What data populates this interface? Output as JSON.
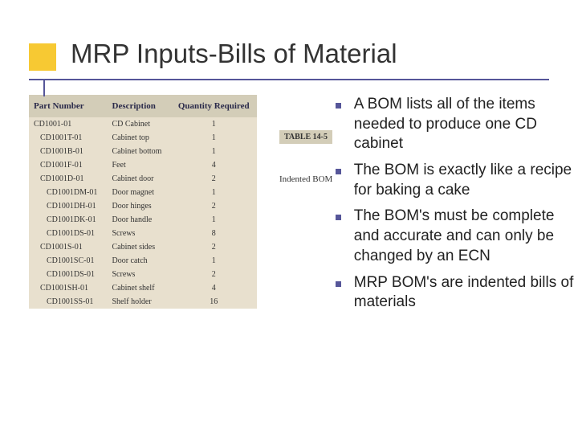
{
  "title": "MRP Inputs-Bills of Material",
  "tableLabel": "TABLE 14-5",
  "tableCaption": "Indented BOM",
  "tableHeaders": [
    "Part Number",
    "Description",
    "Quantity Required"
  ],
  "tableRows": [
    {
      "pn": "CD1001-01",
      "desc": "CD Cabinet",
      "qty": "1",
      "indent": 0
    },
    {
      "pn": "CD1001T-01",
      "desc": "Cabinet top",
      "qty": "1",
      "indent": 1
    },
    {
      "pn": "CD1001B-01",
      "desc": "Cabinet bottom",
      "qty": "1",
      "indent": 1
    },
    {
      "pn": "CD1001F-01",
      "desc": "Feet",
      "qty": "4",
      "indent": 1
    },
    {
      "pn": "CD1001D-01",
      "desc": "Cabinet door",
      "qty": "2",
      "indent": 1
    },
    {
      "pn": "CD1001DM-01",
      "desc": "Door magnet",
      "qty": "1",
      "indent": 2
    },
    {
      "pn": "CD1001DH-01",
      "desc": "Door hinges",
      "qty": "2",
      "indent": 2
    },
    {
      "pn": "CD1001DK-01",
      "desc": "Door handle",
      "qty": "1",
      "indent": 2
    },
    {
      "pn": "CD1001DS-01",
      "desc": "Screws",
      "qty": "8",
      "indent": 2
    },
    {
      "pn": "CD1001S-01",
      "desc": "Cabinet sides",
      "qty": "2",
      "indent": 1
    },
    {
      "pn": "CD1001SC-01",
      "desc": "Door catch",
      "qty": "1",
      "indent": 2
    },
    {
      "pn": "CD1001DS-01",
      "desc": "Screws",
      "qty": "2",
      "indent": 2
    },
    {
      "pn": "CD1001SH-01",
      "desc": "Cabinet shelf",
      "qty": "4",
      "indent": 1
    },
    {
      "pn": "CD1001SS-01",
      "desc": "Shelf holder",
      "qty": "16",
      "indent": 2
    }
  ],
  "bullets": [
    "A BOM lists all of the items needed to produce one CD cabinet",
    "The BOM is exactly like a recipe for baking a cake",
    "The BOM's must be complete and accurate and can only be changed by an ECN",
    "MRP BOM's are indented bills of materials"
  ],
  "colors": {
    "accentYellow": "#f7c933",
    "accentPurple": "#565699",
    "tableHeaderBg": "#d3cdb8",
    "tableBodyBg": "#e8e0ce"
  }
}
